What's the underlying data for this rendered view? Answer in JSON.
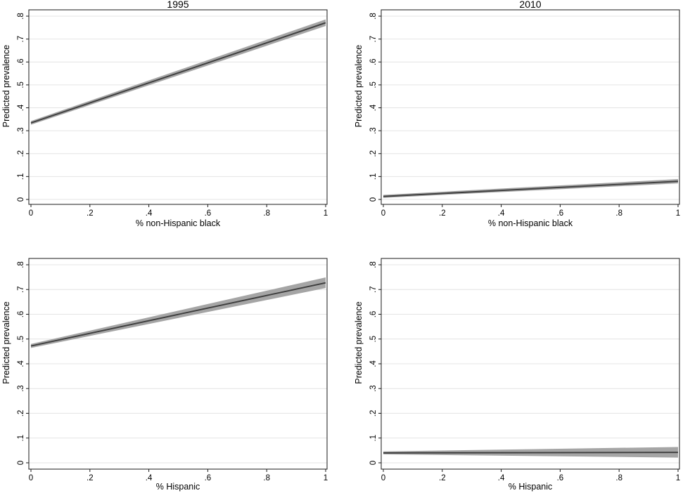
{
  "figure": {
    "kind": "2x2 panel of Stata-style linear prediction plots with confidence bands",
    "background": "#ffffff"
  },
  "colors": {
    "line": "#3d3d3d",
    "band": "#a5a5a5",
    "grid": "#e4e4e4",
    "axis": "#1a1a1a",
    "text": "#000000"
  },
  "chart_data": [
    {
      "id": "chart-1995-nonhispanic-black",
      "type": "line",
      "title": "1995",
      "xlabel": "% non-Hispanic black",
      "ylabel": "Predicted prevalence",
      "xlim": [
        0,
        1
      ],
      "ylim": [
        0,
        0.8
      ],
      "xticks": [
        0,
        0.2,
        0.4,
        0.6,
        0.8,
        1
      ],
      "xtick_labels": [
        "0",
        ".2",
        ".4",
        ".6",
        ".8",
        "1"
      ],
      "yticks": [
        0,
        0.1,
        0.2,
        0.3,
        0.4,
        0.5,
        0.6,
        0.7,
        0.8
      ],
      "ytick_labels": [
        "0",
        ".1",
        ".2",
        ".3",
        ".4",
        ".5",
        ".6",
        ".7",
        ".8"
      ],
      "grid": "horizontal",
      "legend": "none",
      "x": [
        0,
        1
      ],
      "line": [
        0.334,
        0.771
      ],
      "ci_lower": [
        0.326,
        0.757
      ],
      "ci_upper": [
        0.342,
        0.786
      ]
    },
    {
      "id": "chart-2010-nonhispanic-black",
      "type": "line",
      "title": "2010",
      "xlabel": "% non-Hispanic black",
      "ylabel": "Predicted prevalence",
      "xlim": [
        0,
        1
      ],
      "ylim": [
        0,
        0.8
      ],
      "xticks": [
        0,
        0.2,
        0.4,
        0.6,
        0.8,
        1
      ],
      "xtick_labels": [
        "0",
        ".2",
        ".4",
        ".6",
        ".8",
        "1"
      ],
      "yticks": [
        0,
        0.1,
        0.2,
        0.3,
        0.4,
        0.5,
        0.6,
        0.7,
        0.8
      ],
      "ytick_labels": [
        "0",
        ".1",
        ".2",
        ".3",
        ".4",
        ".5",
        ".6",
        ".7",
        ".8"
      ],
      "grid": "horizontal",
      "legend": "none",
      "x": [
        0,
        1
      ],
      "line": [
        0.013,
        0.079
      ],
      "ci_lower": [
        0.007,
        0.07
      ],
      "ci_upper": [
        0.02,
        0.089
      ]
    },
    {
      "id": "chart-1995-hispanic",
      "type": "line",
      "title": "",
      "xlabel": "% Hispanic",
      "ylabel": "Predicted prevalence",
      "xlim": [
        0,
        1
      ],
      "ylim": [
        0,
        0.8
      ],
      "xticks": [
        0,
        0.2,
        0.4,
        0.6,
        0.8,
        1
      ],
      "xtick_labels": [
        "0",
        ".2",
        ".4",
        ".6",
        ".8",
        "1"
      ],
      "yticks": [
        0,
        0.1,
        0.2,
        0.3,
        0.4,
        0.5,
        0.6,
        0.7,
        0.8
      ],
      "ytick_labels": [
        "0",
        ".1",
        ".2",
        ".3",
        ".4",
        ".5",
        ".6",
        ".7",
        ".8"
      ],
      "grid": "horizontal",
      "legend": "none",
      "x": [
        0,
        1
      ],
      "line": [
        0.472,
        0.727
      ],
      "ci_lower": [
        0.464,
        0.706
      ],
      "ci_upper": [
        0.48,
        0.749
      ]
    },
    {
      "id": "chart-2010-hispanic",
      "type": "line",
      "title": "",
      "xlabel": "% Hispanic",
      "ylabel": "Predicted prevalence",
      "xlim": [
        0,
        1
      ],
      "ylim": [
        0,
        0.8
      ],
      "xticks": [
        0,
        0.2,
        0.4,
        0.6,
        0.8,
        1
      ],
      "xtick_labels": [
        "0",
        ".2",
        ".4",
        ".6",
        ".8",
        "1"
      ],
      "yticks": [
        0,
        0.1,
        0.2,
        0.3,
        0.4,
        0.5,
        0.6,
        0.7,
        0.8
      ],
      "ytick_labels": [
        "0",
        ".1",
        ".2",
        ".3",
        ".4",
        ".5",
        ".6",
        ".7",
        ".8"
      ],
      "grid": "horizontal",
      "legend": "none",
      "x": [
        0,
        1
      ],
      "line": [
        0.04,
        0.042
      ],
      "ci_lower": [
        0.034,
        0.021
      ],
      "ci_upper": [
        0.046,
        0.064
      ]
    }
  ]
}
